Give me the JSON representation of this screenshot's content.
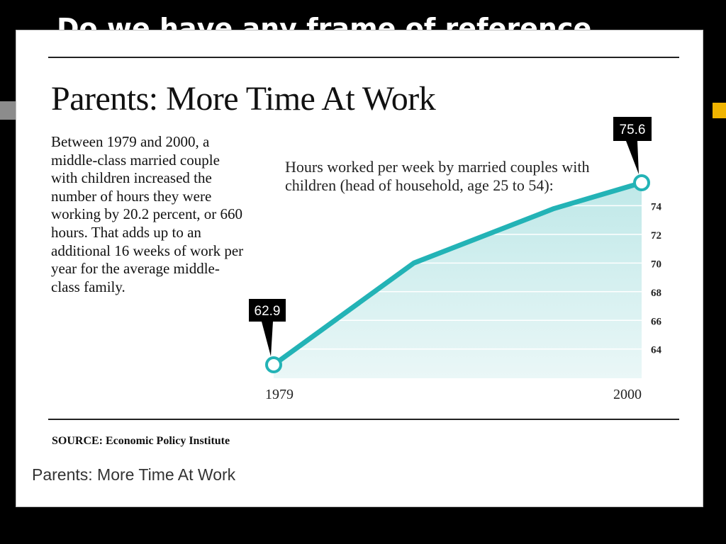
{
  "slide": {
    "title": "Do we have any frame of reference"
  },
  "card": {
    "headline": "Parents: More Time At Work",
    "body_text": "Between 1979 and 2000, a middle-class married couple with children increased the number of hours they were working by 20.2 percent, or 660 hours. That adds up to an additional 16 weeks of work per year for the average middle-class family.",
    "chart_description": "Hours worked per week by married couples with children (head of household, age 25 to 54):",
    "source": "SOURCE: Economic Policy Institute",
    "caption": "Parents: More Time At Work"
  },
  "colors": {
    "line": "#23b3b6",
    "area_fill": "#bfe8e8",
    "callout_bg": "#000000",
    "slide_bg": "#000000"
  },
  "chart_data": {
    "type": "area",
    "title": "",
    "xlabel": "",
    "ylabel": "",
    "x_tick_labels": [
      "1979",
      "2000"
    ],
    "y_ticks": [
      64,
      66,
      68,
      70,
      72,
      74
    ],
    "x": [
      1979,
      1987,
      1995,
      2000
    ],
    "series": [
      {
        "values": [
          62.9,
          70.0,
          73.8,
          75.6
        ]
      }
    ],
    "annotations": [
      {
        "x": 1979,
        "y": 62.9,
        "text": "62.9"
      },
      {
        "x": 2000,
        "y": 75.6,
        "text": "75.6"
      }
    ],
    "xlim": [
      1979,
      2000
    ],
    "ylim": [
      62.9,
      75.6
    ],
    "grid": true
  }
}
